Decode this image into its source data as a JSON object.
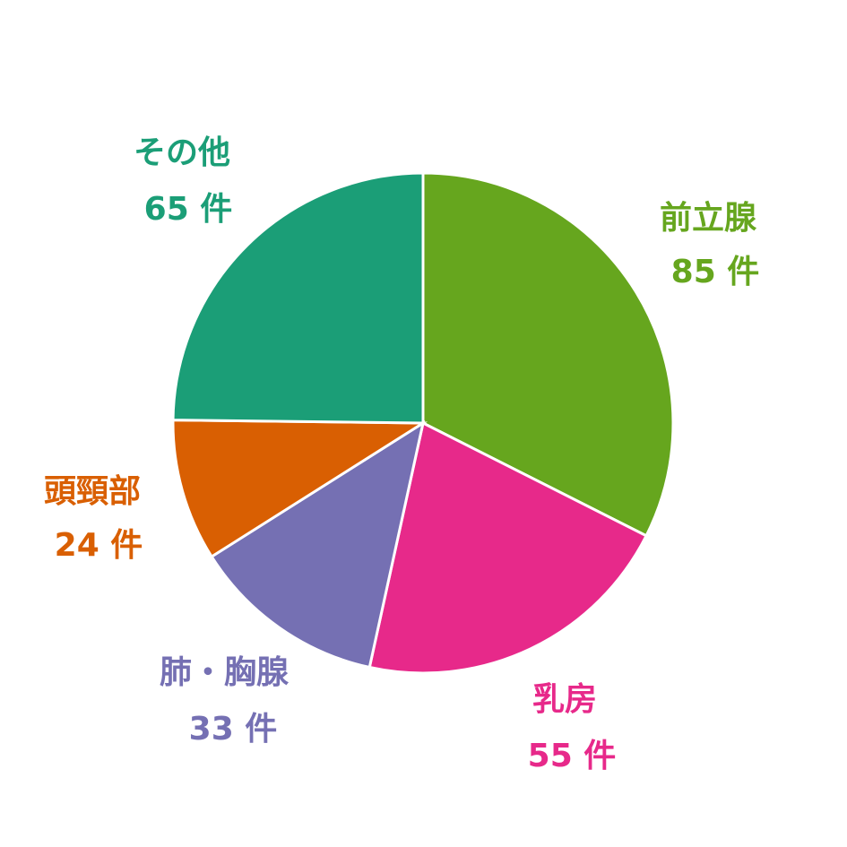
{
  "chart_data": {
    "type": "pie",
    "categories": [
      "前立腺",
      "乳房",
      "肺・胸腺",
      "頭頸部",
      "その他"
    ],
    "values": [
      85,
      55,
      33,
      24,
      65
    ],
    "value_labels": [
      "85 件",
      "55 件",
      "33 件",
      "24 件",
      "65 件"
    ],
    "colors": [
      "#66a61e",
      "#e7298a",
      "#7570b3",
      "#d95f02",
      "#1b9e77"
    ]
  }
}
